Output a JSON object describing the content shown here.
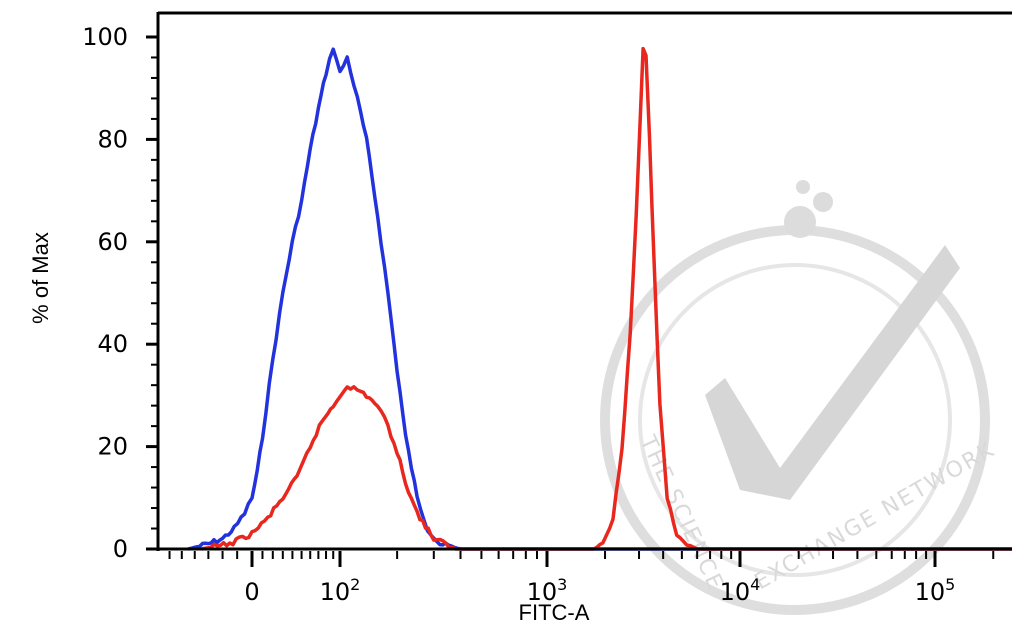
{
  "chart_data": {
    "type": "line",
    "title": "",
    "xlabel": "FITC-A",
    "ylabel": "% of Max",
    "x_scale": "biexponential",
    "xlim": [
      -60,
      250000
    ],
    "ylim": [
      0,
      100
    ],
    "grid": false,
    "legend": "none",
    "y_ticks": [
      0,
      20,
      40,
      60,
      80,
      100
    ],
    "x_ticks": [
      {
        "value": 0,
        "label": "0",
        "sup": ""
      },
      {
        "value": 100,
        "label": "10",
        "sup": "2"
      },
      {
        "value": 1000,
        "label": "10",
        "sup": "3"
      },
      {
        "value": 10000,
        "label": "10",
        "sup": "4"
      },
      {
        "value": 100000,
        "label": "10",
        "sup": "5"
      }
    ],
    "series": [
      {
        "color": "#2233dd",
        "points": [
          [
            -45,
            0
          ],
          [
            -30,
            1
          ],
          [
            -20,
            2
          ],
          [
            -12,
            4
          ],
          [
            -5,
            7
          ],
          [
            0,
            10
          ],
          [
            5,
            15
          ],
          [
            10,
            22
          ],
          [
            20,
            37
          ],
          [
            30,
            50
          ],
          [
            40,
            60
          ],
          [
            50,
            68
          ],
          [
            60,
            78
          ],
          [
            70,
            86
          ],
          [
            80,
            93
          ],
          [
            90,
            98
          ],
          [
            100,
            93
          ],
          [
            110,
            96
          ],
          [
            125,
            88
          ],
          [
            140,
            80
          ],
          [
            160,
            65
          ],
          [
            180,
            50
          ],
          [
            200,
            35
          ],
          [
            220,
            22
          ],
          [
            250,
            10
          ],
          [
            280,
            4
          ],
          [
            320,
            1
          ],
          [
            400,
            0
          ],
          [
            2000,
            0
          ],
          [
            10000,
            0
          ],
          [
            250000,
            0
          ]
        ]
      },
      {
        "color": "#e8281e",
        "points": [
          [
            -35,
            0
          ],
          [
            -15,
            1
          ],
          [
            0,
            3
          ],
          [
            15,
            6
          ],
          [
            30,
            10
          ],
          [
            45,
            14
          ],
          [
            60,
            20
          ],
          [
            75,
            25
          ],
          [
            90,
            28
          ],
          [
            100,
            30
          ],
          [
            110,
            32
          ],
          [
            125,
            31
          ],
          [
            140,
            30
          ],
          [
            160,
            28
          ],
          [
            180,
            24
          ],
          [
            200,
            19
          ],
          [
            220,
            13
          ],
          [
            250,
            7
          ],
          [
            300,
            2
          ],
          [
            380,
            0
          ],
          [
            1750,
            0
          ],
          [
            1950,
            1
          ],
          [
            2200,
            6
          ],
          [
            2450,
            20
          ],
          [
            2700,
            42
          ],
          [
            2900,
            65
          ],
          [
            3050,
            85
          ],
          [
            3150,
            98
          ],
          [
            3260,
            96
          ],
          [
            3400,
            80
          ],
          [
            3600,
            55
          ],
          [
            3850,
            28
          ],
          [
            4200,
            10
          ],
          [
            4700,
            3
          ],
          [
            5300,
            1
          ],
          [
            6000,
            0
          ],
          [
            250000,
            0
          ]
        ]
      }
    ]
  },
  "watermark": {
    "color": "#d9d9d9",
    "text_left": "THE SCIENCE",
    "text_right": "EXCHANGE NETWORK"
  }
}
